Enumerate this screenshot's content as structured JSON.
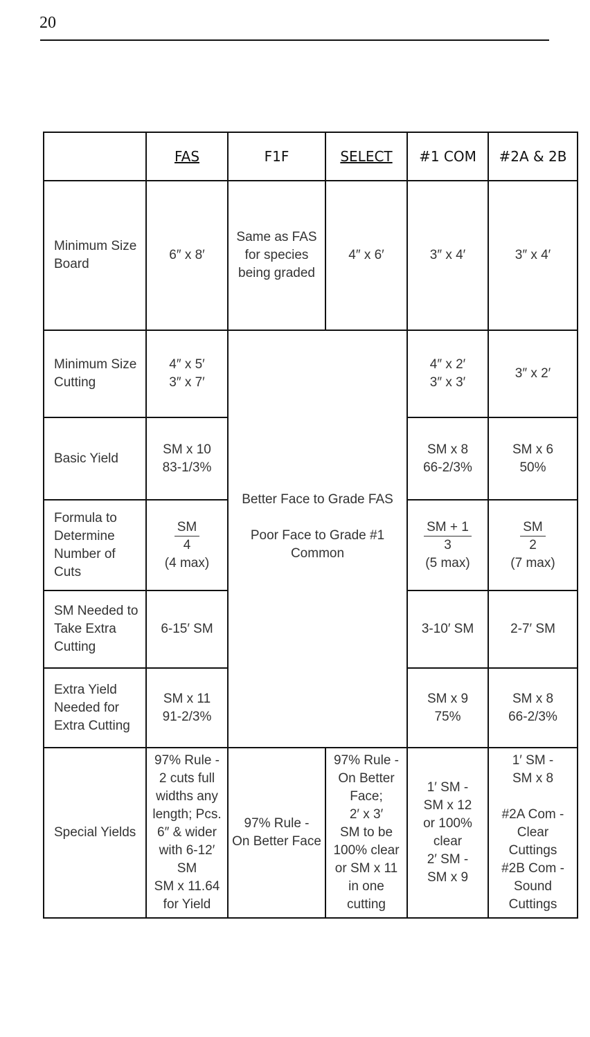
{
  "page_number": "20",
  "table": {
    "headers": [
      "",
      "FAS",
      "F1F",
      "SELECT",
      "#1 COM",
      "#2A & 2B"
    ],
    "rows": {
      "min_board": {
        "label": "Minimum Size\nBoard",
        "fas": "6″ x 8′",
        "f1f": "Same as FAS\nfor species\nbeing graded",
        "select": "4″ x 6′",
        "com1": "3″ x 4′",
        "com2": "3″ x 4′"
      },
      "min_cutting": {
        "label": "Minimum Size\nCutting",
        "fas": "4″ x 5′\n3″ x 7′",
        "com1": "4″ x 2′\n3″ x 3′",
        "com2": "3″ x 2′"
      },
      "merged_note": "Better Face to Grade FAS\n\nPoor Face to Grade #1\nCommon",
      "basic_yield": {
        "label": "Basic Yield",
        "fas": "SM x 10\n83-1/3%",
        "com1": "SM x 8\n66-2/3%",
        "com2": "SM x 6\n50%"
      },
      "formula": {
        "label": "Formula to\nDetermine\nNumber of\nCuts",
        "fas": {
          "num": "SM",
          "den": "4",
          "max": "(4 max)"
        },
        "com1": {
          "num": "SM + 1",
          "den": "3",
          "max": "(5 max)"
        },
        "com2": {
          "num": "SM",
          "den": "2",
          "max": "(7 max)"
        }
      },
      "sm_needed": {
        "label": "SM Needed to\nTake Extra\nCutting",
        "fas": "6-15′ SM",
        "com1": "3-10′ SM",
        "com2": "2-7′ SM"
      },
      "extra_yield": {
        "label": "Extra Yield\nNeeded for\nExtra Cutting",
        "fas": "SM x 11\n91-2/3%",
        "com1": "SM x 9\n75%",
        "com2": "SM x 8\n66-2/3%"
      },
      "special": {
        "label": "Special Yields",
        "fas": "97% Rule -\n2 cuts full\nwidths any\nlength; Pcs.\n6″ & wider\nwith 6-12′\nSM\nSM x 11.64\nfor Yield",
        "f1f": "97% Rule -\nOn Better Face",
        "select": "97% Rule -\nOn Better\nFace;\n2′ x 3′\nSM to be\n100% clear\nor SM x 11\nin one\ncutting",
        "com1": "1′ SM -\nSM x 12\nor 100%\nclear\n2′ SM -\nSM x 9",
        "com2": "1′ SM -\nSM x 8\n\n#2A Com -\nClear\nCuttings\n#2B Com -\nSound\nCuttings"
      }
    }
  }
}
